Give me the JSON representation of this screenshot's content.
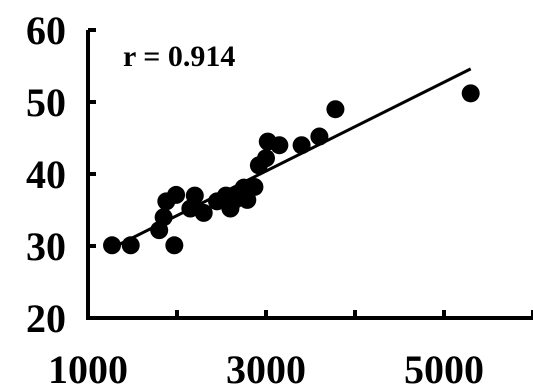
{
  "chart_data": {
    "type": "scatter",
    "title": "",
    "xlabel": "",
    "ylabel": "",
    "xlim": [
      1000,
      6000
    ],
    "ylim": [
      20,
      60
    ],
    "x_ticks": [
      1000,
      2000,
      3000,
      4000,
      5000,
      6000
    ],
    "x_tick_labels": [
      "1000",
      "3000",
      "5000"
    ],
    "x_tick_label_values": [
      1000,
      3000,
      5000
    ],
    "y_ticks": [
      20,
      30,
      40,
      50,
      60
    ],
    "y_tick_labels": [
      "20",
      "30",
      "40",
      "50",
      "60"
    ],
    "annotation": "r = 0.914",
    "grid": false,
    "legend": "none",
    "point_color": "#000000",
    "points": [
      {
        "x": 1270,
        "y": 30.1
      },
      {
        "x": 1480,
        "y": 30.1
      },
      {
        "x": 1800,
        "y": 32.2
      },
      {
        "x": 1850,
        "y": 34.0
      },
      {
        "x": 1880,
        "y": 36.2
      },
      {
        "x": 1970,
        "y": 30.1
      },
      {
        "x": 1990,
        "y": 37.1
      },
      {
        "x": 2150,
        "y": 35.2
      },
      {
        "x": 2200,
        "y": 37.0
      },
      {
        "x": 2300,
        "y": 34.6
      },
      {
        "x": 2450,
        "y": 36.2
      },
      {
        "x": 2550,
        "y": 37.0
      },
      {
        "x": 2600,
        "y": 35.2
      },
      {
        "x": 2650,
        "y": 36.4
      },
      {
        "x": 2700,
        "y": 37.2
      },
      {
        "x": 2750,
        "y": 38.1
      },
      {
        "x": 2790,
        "y": 36.4
      },
      {
        "x": 2870,
        "y": 38.2
      },
      {
        "x": 2920,
        "y": 41.2
      },
      {
        "x": 3000,
        "y": 42.2
      },
      {
        "x": 3020,
        "y": 44.5
      },
      {
        "x": 3150,
        "y": 44.0
      },
      {
        "x": 3400,
        "y": 44.0
      },
      {
        "x": 3600,
        "y": 45.2
      },
      {
        "x": 3780,
        "y": 49.0
      },
      {
        "x": 5300,
        "y": 51.2
      }
    ],
    "fit_line": {
      "x": [
        1250,
        5300
      ],
      "y": [
        29.6,
        54.6
      ],
      "color": "#000000"
    }
  }
}
